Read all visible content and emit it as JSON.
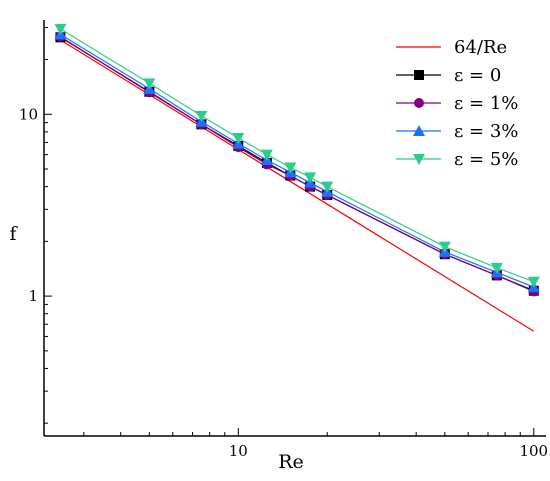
{
  "chart_data": {
    "type": "line",
    "x_scale": "log",
    "y_scale": "log",
    "xlim": [
      2.2,
      110
    ],
    "ylim": [
      0.17,
      33
    ],
    "xlabel": "Re",
    "ylabel": "f",
    "x_ticks": [
      {
        "value": 10,
        "label": "10"
      },
      {
        "value": 100,
        "label": "100"
      }
    ],
    "y_ticks": [
      {
        "value": 1,
        "label": "1"
      },
      {
        "value": 10,
        "label": "10"
      }
    ],
    "grid": false,
    "legend_position": "top-right",
    "series": [
      {
        "name": "64/Re",
        "color": "#ff0000",
        "marker": "none",
        "x": [
          2.4,
          100
        ],
        "y": [
          26.67,
          0.64
        ]
      },
      {
        "name": "ε = 0",
        "color": "#000000",
        "marker": "square",
        "x": [
          2.5,
          5,
          7.5,
          10,
          12.5,
          15,
          17.5,
          20,
          50,
          75,
          100
        ],
        "y": [
          26.5,
          13.3,
          8.8,
          6.7,
          5.4,
          4.6,
          4.0,
          3.6,
          1.7,
          1.3,
          1.07
        ]
      },
      {
        "name": "ε = 1%",
        "color": "#800080",
        "marker": "circle",
        "x": [
          2.5,
          5,
          7.5,
          10,
          12.5,
          15,
          17.5,
          20,
          50,
          75,
          100
        ],
        "y": [
          26.7,
          13.2,
          8.8,
          6.6,
          5.3,
          4.6,
          4.0,
          3.6,
          1.7,
          1.3,
          1.06
        ]
      },
      {
        "name": "ε = 3%",
        "color": "#1e6fff",
        "marker": "triangle-up",
        "x": [
          2.5,
          5,
          7.5,
          10,
          12.5,
          15,
          17.5,
          20,
          50,
          75,
          100
        ],
        "y": [
          27.5,
          13.8,
          9.1,
          6.9,
          5.6,
          4.8,
          4.2,
          3.75,
          1.75,
          1.35,
          1.12
        ]
      },
      {
        "name": "ε = 5%",
        "color": "#2ecc8a",
        "marker": "triangle-down",
        "x": [
          2.5,
          5,
          7.5,
          10,
          12.5,
          15,
          17.5,
          20,
          50,
          75,
          100
        ],
        "y": [
          29.5,
          14.8,
          9.8,
          7.4,
          6.0,
          5.1,
          4.5,
          4.0,
          1.87,
          1.43,
          1.2
        ]
      }
    ]
  }
}
